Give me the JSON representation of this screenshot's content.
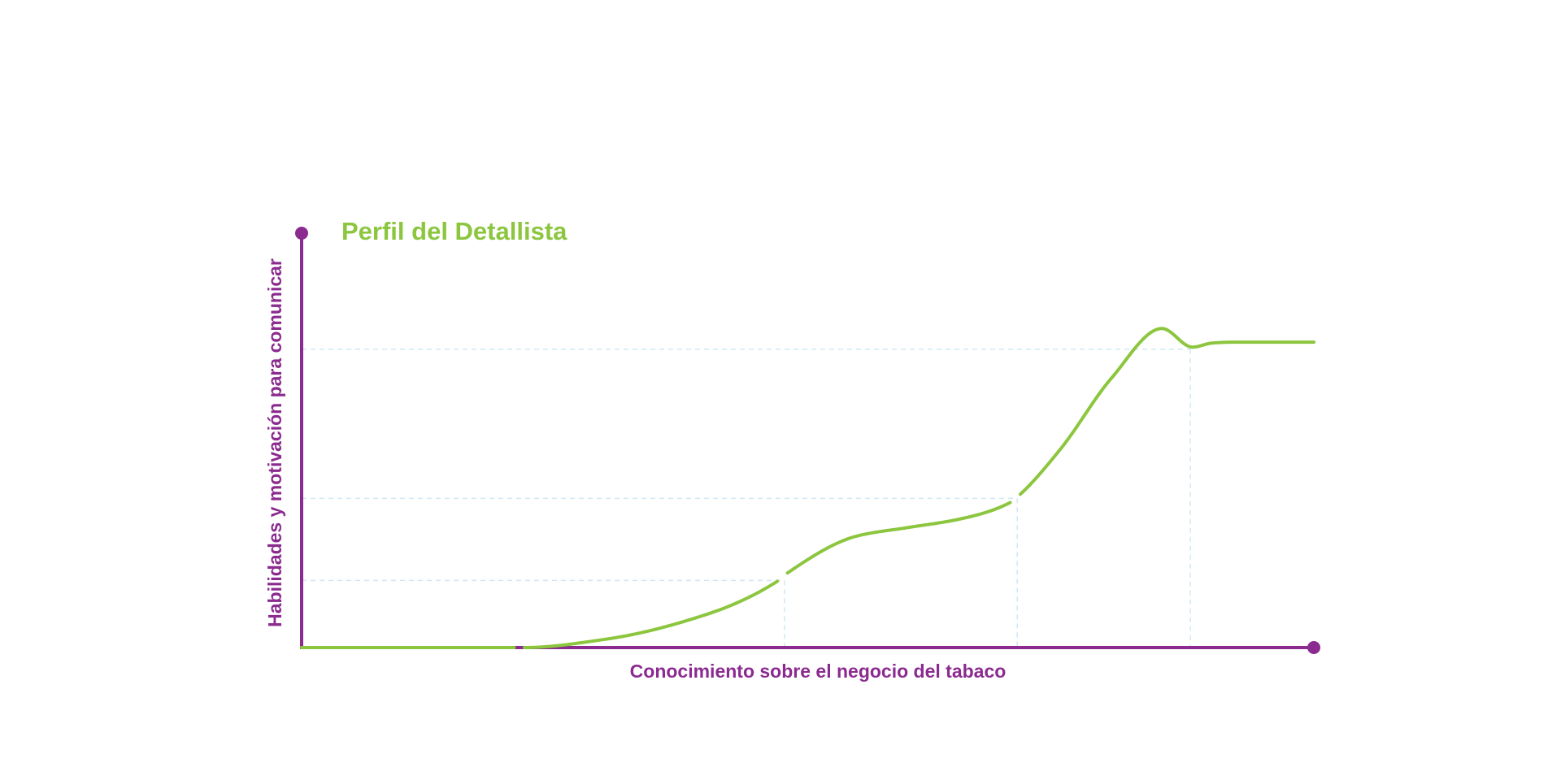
{
  "colors": {
    "axis": "#8b2a8f",
    "curve": "#8cc63f",
    "grid": "#cfe7f5",
    "title": "#8cc63f",
    "background": "#ffffff"
  },
  "chart_data": {
    "type": "line",
    "title": "Perfil del Detallista",
    "xlabel": "Conocimiento sobre el negocio del tabaco",
    "ylabel": "Habilidades y motivación para comunicar",
    "xlim": [
      0,
      100
    ],
    "ylim": [
      0,
      100
    ],
    "grid": "dashed reference lines at curve inflection points",
    "series": [
      {
        "values_x": [
          0,
          21,
          22,
          30,
          40,
          47,
          48,
          55,
          60,
          65,
          70,
          71,
          75,
          80,
          85,
          88,
          90,
          92,
          100
        ],
        "values_y": [
          0,
          0,
          0,
          2,
          8,
          16,
          18,
          27,
          29,
          31,
          35,
          37,
          48,
          65,
          77,
          72.5,
          73.5,
          73.7,
          73.7
        ],
        "segments": [
          [
            0,
            21
          ],
          [
            22,
            47
          ],
          [
            48,
            70
          ],
          [
            71,
            100
          ]
        ]
      }
    ],
    "reference_points": [
      {
        "x": 47.7,
        "y": 16.2
      },
      {
        "x": 70.7,
        "y": 36.0
      },
      {
        "x": 87.8,
        "y": 72.0
      }
    ]
  }
}
